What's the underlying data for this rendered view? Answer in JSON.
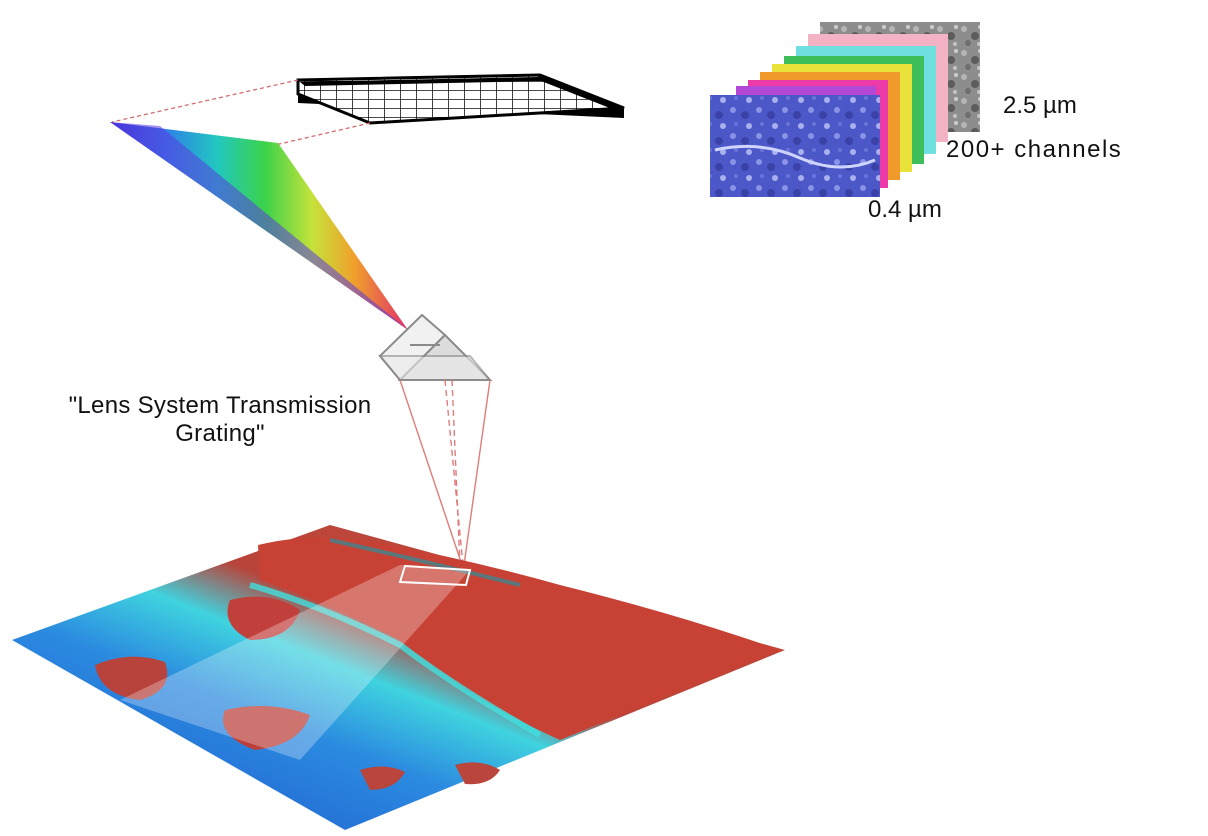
{
  "labels": {
    "lens_system": "\"Lens System Transmission Grating\"",
    "wavelength_max": "2.5 µm",
    "channels": "200+  channels",
    "wavelength_min": "0.4 µm"
  },
  "icons": {
    "detector": "detector-array-icon",
    "prism": "prism-icon",
    "spectrum": "spectrum-fan-icon",
    "cube": "hyperspectral-cube-icon",
    "scene": "satellite-scene-icon"
  },
  "colors": {
    "beam": "#d94a4a",
    "land": "#c8433a",
    "water": "#2b7fd6",
    "shallow_water": "#35d6e0",
    "band_top": "#8a8a8a",
    "band_bottom": "#4b57c9"
  }
}
